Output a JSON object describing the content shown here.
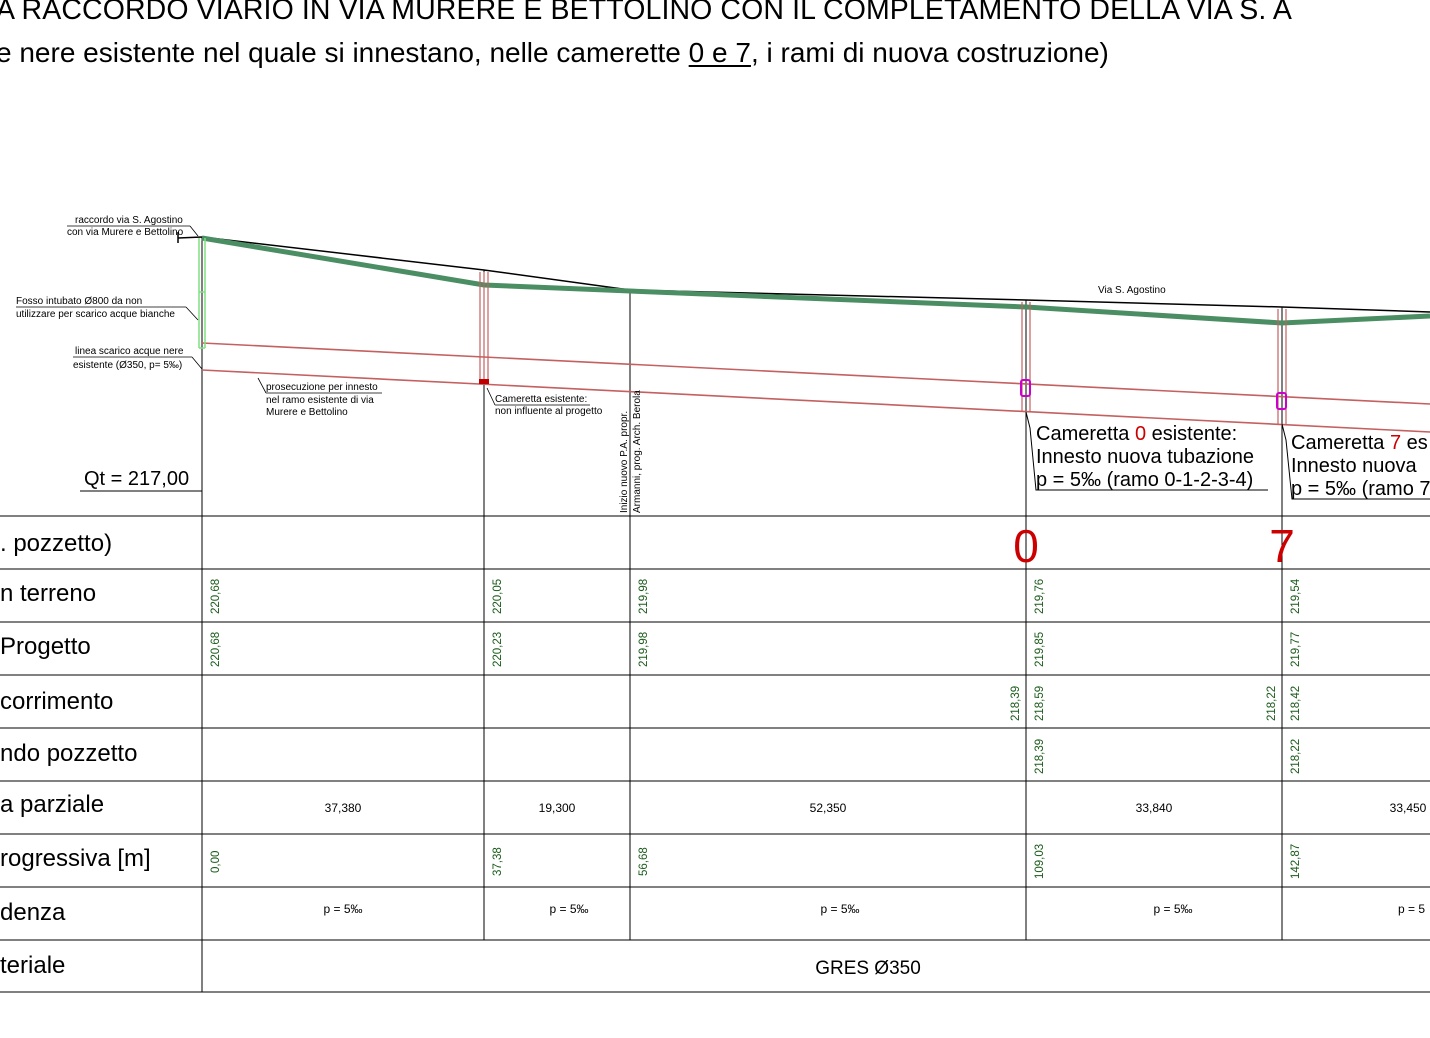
{
  "title": {
    "line1": "A RACCORDO VIARIO IN VIA MURERE E BETTOLINO CON IL COMPLETAMENTO DELLA VIA S. A",
    "line2_pre": "e nere esistente nel quale si innestano, nelle camerette ",
    "line2_under": "0 e 7",
    "line2_post": ", i rami di nuova costruzione)"
  },
  "annotations": {
    "raccordo_1": "raccordo via S. Agostino",
    "raccordo_2": "con via Murere e Bettolino",
    "fosso_1": "Fosso intubato Ø800 da non",
    "fosso_2": "utilizzare per scarico acque bianche",
    "linea_1": "linea scarico acque nere",
    "linea_2": "esistente (Ø350, p= 5‰)",
    "prosec_1": "prosecuzione per innesto",
    "prosec_2": "nel ramo esistente di via",
    "prosec_3": "Murere e Bettolino",
    "cam_esist_1": "Cameretta esistente:",
    "cam_esist_2": "non influente al progetto",
    "inizio_1": "Inizio nuovo P.A. propr.",
    "inizio_2": "Armanni, prog. Arch. Berola",
    "via": "Via S. Agostino",
    "qt": "Qt = 217,00",
    "cam0_pre": "Cameretta ",
    "cam0_num": "0",
    "cam0_post": " esistente:",
    "cam0_line2": "Innesto nuova tubazione",
    "cam0_line3": "p = 5‰ (ramo 0-1-2-3-4)",
    "cam7_pre": "Cameretta ",
    "cam7_num": "7",
    "cam7_post": " es",
    "cam7_line2": "Innesto nuova",
    "cam7_line3": "p = 5‰ (ramo 7"
  },
  "rows": {
    "pozzetto": ". pozzetto)",
    "terreno": "n terreno",
    "progetto": " Progetto",
    "scorrimento": "corrimento",
    "fondo": "ndo pozzetto",
    "parziale": "a parziale",
    "progressiva": "rogressiva [m]",
    "pendenza": "denza",
    "materiale": "teriale"
  },
  "pozzetti": {
    "p0": "0",
    "p7": "7"
  },
  "terreno": [
    "220,68",
    "220,05",
    "219,98",
    "219,76",
    "219,54"
  ],
  "progetto": [
    "220,68",
    "220,23",
    "219,98",
    "219,85",
    "219,77"
  ],
  "scorrimento": {
    "c0_a": "218,39",
    "c0_b": "218,59",
    "c7_a": "218,22",
    "c7_b": "218,42"
  },
  "fondo": {
    "c0": "218,39",
    "c7": "218,22"
  },
  "parziale": [
    "37,380",
    "19,300",
    "52,350",
    "33,840",
    "33,450"
  ],
  "progressiva": [
    "0,00",
    "37,38",
    "56,68",
    "109,03",
    "142,87"
  ],
  "pendenza": [
    "p = 5‰",
    "p = 5‰",
    "p = 5‰",
    "p = 5‰",
    "p = 5"
  ],
  "materiale": "GRES Ø350",
  "colors": {
    "road_profile": "#4b8e63",
    "pipe": "#c46060",
    "manhole_accent": "#cc00cc",
    "fosso": "#7fe07f",
    "highlight_red": "#cc0000",
    "value_green": "#1a5c1a"
  }
}
